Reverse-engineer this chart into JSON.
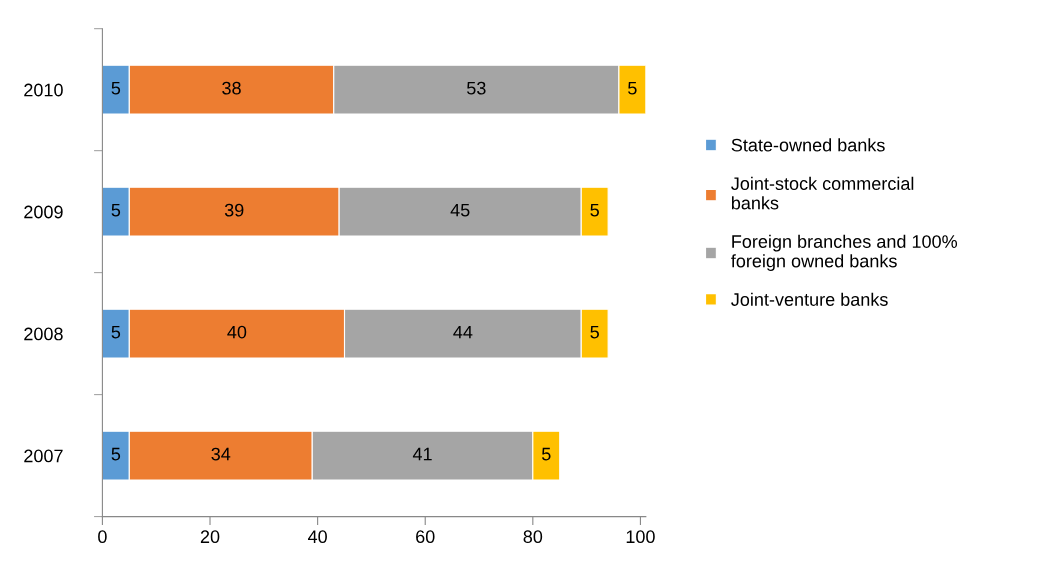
{
  "chart_data": {
    "type": "bar",
    "orientation": "horizontal",
    "stacked": true,
    "categories": [
      "2010",
      "2009",
      "2008",
      "2007"
    ],
    "series": [
      {
        "name": "State-owned banks",
        "color": "#5b9bd5",
        "values": [
          5,
          5,
          5,
          5
        ]
      },
      {
        "name": "Joint-stock commercial\nbanks",
        "color": "#ed7d31",
        "values": [
          38,
          39,
          40,
          34
        ]
      },
      {
        "name": "Foreign branches and 100%\nforeign owned banks",
        "color": "#a5a5a5",
        "values": [
          53,
          45,
          44,
          41
        ]
      },
      {
        "name": "Joint-venture banks",
        "color": "#ffc000",
        "values": [
          5,
          5,
          5,
          5
        ]
      }
    ],
    "xlim": [
      0,
      101
    ],
    "xticks": [
      0,
      20,
      40,
      60,
      80,
      100
    ],
    "data_labels": true,
    "legend": "right",
    "grid": false
  }
}
